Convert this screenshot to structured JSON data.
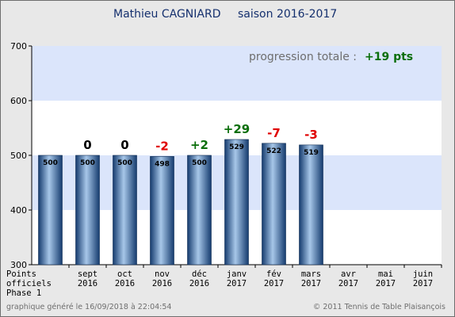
{
  "footer": {
    "left": "graphique généré le 16/09/2018 à 22:04:54",
    "right": "© 2011 Tennis de Table Plaisançois"
  },
  "chart_data": {
    "type": "bar",
    "title_name": "Mathieu CAGNIARD",
    "title_season": "saison 2016-2017",
    "categories": [
      [
        "Points",
        "officiels",
        "Phase 1"
      ],
      [
        "sept",
        "2016"
      ],
      [
        "oct",
        "2016"
      ],
      [
        "nov",
        "2016"
      ],
      [
        "déc",
        "2016"
      ],
      [
        "janv",
        "2017"
      ],
      [
        "fév",
        "2017"
      ],
      [
        "mars",
        "2017"
      ],
      [
        "avr",
        "2017"
      ],
      [
        "mai",
        "2017"
      ],
      [
        "juin",
        "2017"
      ]
    ],
    "values": [
      500,
      500,
      500,
      498,
      500,
      529,
      522,
      519,
      null,
      null,
      null
    ],
    "value_labels": [
      "500",
      "500",
      "500",
      "498",
      "500",
      "529",
      "522",
      "519",
      "",
      "",
      ""
    ],
    "deltas": [
      "",
      "0",
      "0",
      "-2",
      "+2",
      "+29",
      "-7",
      "-3",
      "",
      "",
      ""
    ],
    "delta_colors": {
      "zero": "#000000",
      "positive": "#0a6e0a",
      "negative": "#e00000"
    },
    "ylim": [
      300,
      700
    ],
    "yticks": [
      300,
      400,
      500,
      600,
      700
    ],
    "progression_label": "progression totale :",
    "progression_value": "+19 pts",
    "colors": {
      "background": "#e8e8e8",
      "band_blue": "#dbe5fb",
      "band_white": "#ffffff",
      "bar_dark": "#153b6e",
      "bar_light": "#a7c7e9"
    }
  }
}
